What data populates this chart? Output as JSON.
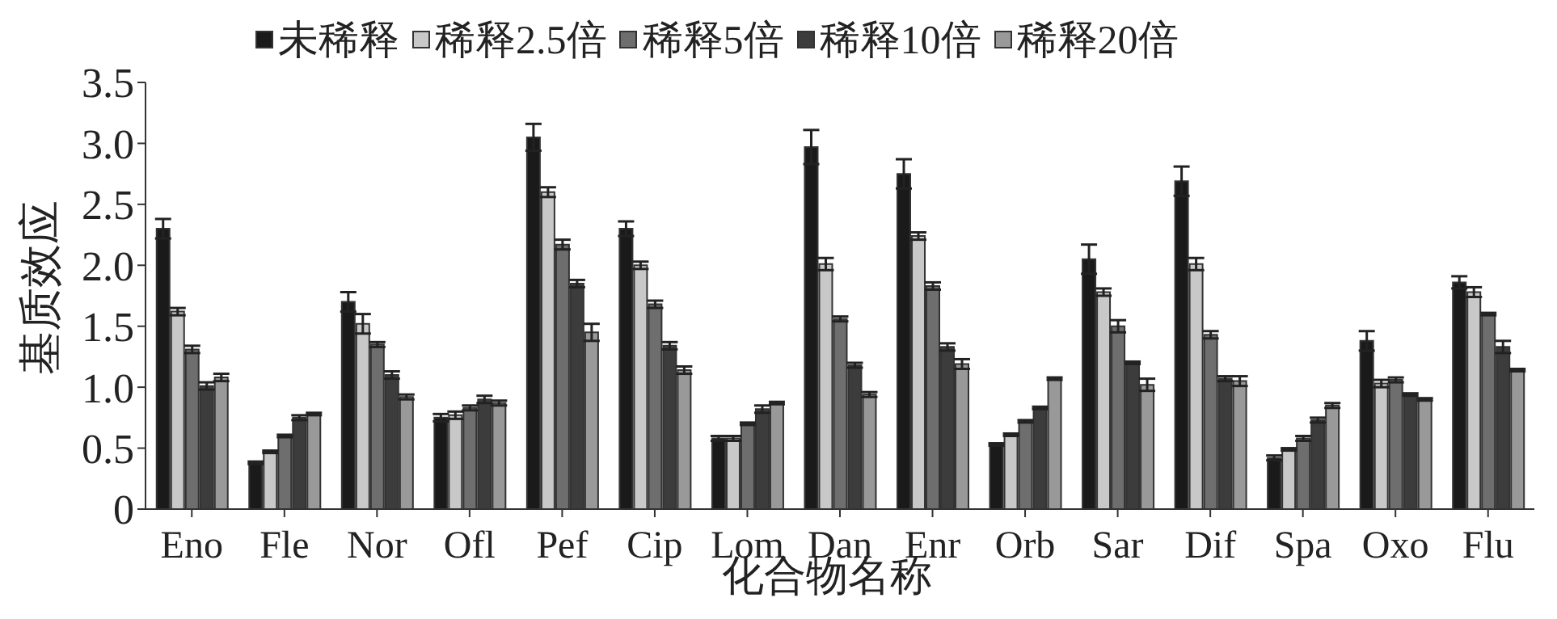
{
  "chart_data": {
    "type": "bar",
    "xlabel": "化合物名称",
    "ylabel": "基质效应",
    "categories": [
      "Eno",
      "Fle",
      "Nor",
      "Ofl",
      "Pef",
      "Cip",
      "Lom",
      "Dan",
      "Enr",
      "Orb",
      "Sar",
      "Dif",
      "Spa",
      "Oxo",
      "Flu"
    ],
    "series": [
      {
        "name": "未稀释",
        "color": "#1a1a1a",
        "values": [
          2.3,
          0.38,
          1.7,
          0.75,
          3.05,
          2.3,
          0.58,
          2.97,
          2.75,
          0.53,
          2.05,
          2.69,
          0.42,
          1.38,
          1.86
        ],
        "errors": [
          0.08,
          0.01,
          0.08,
          0.03,
          0.11,
          0.06,
          0.02,
          0.14,
          0.12,
          0.01,
          0.12,
          0.12,
          0.02,
          0.08,
          0.05
        ]
      },
      {
        "name": "稀释2.5倍",
        "color": "#c8c8c8",
        "values": [
          1.62,
          0.47,
          1.52,
          0.77,
          2.6,
          2.0,
          0.58,
          2.01,
          2.24,
          0.61,
          1.78,
          2.01,
          0.49,
          1.03,
          1.78
        ],
        "errors": [
          0.03,
          0.01,
          0.08,
          0.03,
          0.04,
          0.03,
          0.02,
          0.05,
          0.03,
          0.01,
          0.03,
          0.05,
          0.01,
          0.03,
          0.04
        ]
      },
      {
        "name": "稀释5倍",
        "color": "#6e6e6e",
        "values": [
          1.31,
          0.6,
          1.35,
          0.83,
          2.17,
          1.68,
          0.7,
          1.56,
          1.83,
          0.72,
          1.5,
          1.43,
          0.58,
          1.06,
          1.6
        ],
        "errors": [
          0.03,
          0.01,
          0.02,
          0.02,
          0.04,
          0.03,
          0.01,
          0.02,
          0.03,
          0.01,
          0.05,
          0.03,
          0.02,
          0.02,
          0.01
        ]
      },
      {
        "name": "稀释10倍",
        "color": "#3c3c3c",
        "values": [
          1.01,
          0.75,
          1.1,
          0.9,
          1.85,
          1.34,
          0.82,
          1.18,
          1.33,
          0.83,
          1.2,
          1.07,
          0.73,
          0.94,
          1.33
        ],
        "errors": [
          0.03,
          0.02,
          0.03,
          0.03,
          0.03,
          0.03,
          0.03,
          0.02,
          0.03,
          0.01,
          0.01,
          0.02,
          0.02,
          0.01,
          0.05
        ]
      },
      {
        "name": "稀释20倍",
        "color": "#999999",
        "values": [
          1.08,
          0.78,
          0.92,
          0.87,
          1.45,
          1.14,
          0.87,
          0.94,
          1.19,
          1.07,
          1.02,
          1.05,
          0.85,
          0.9,
          1.14
        ],
        "errors": [
          0.03,
          0.01,
          0.02,
          0.02,
          0.07,
          0.03,
          0.01,
          0.02,
          0.04,
          0.01,
          0.05,
          0.04,
          0.02,
          0.01,
          0.01
        ]
      }
    ],
    "ylim": [
      0,
      3.5
    ],
    "yticks": [
      0,
      0.5,
      {
        "value": 1,
        "label": "1.0"
      },
      1.5,
      {
        "value": 2,
        "label": "2.0"
      },
      2.5,
      {
        "value": 3,
        "label": "3.0"
      },
      3.5
    ],
    "legend": "top",
    "grid": false
  }
}
